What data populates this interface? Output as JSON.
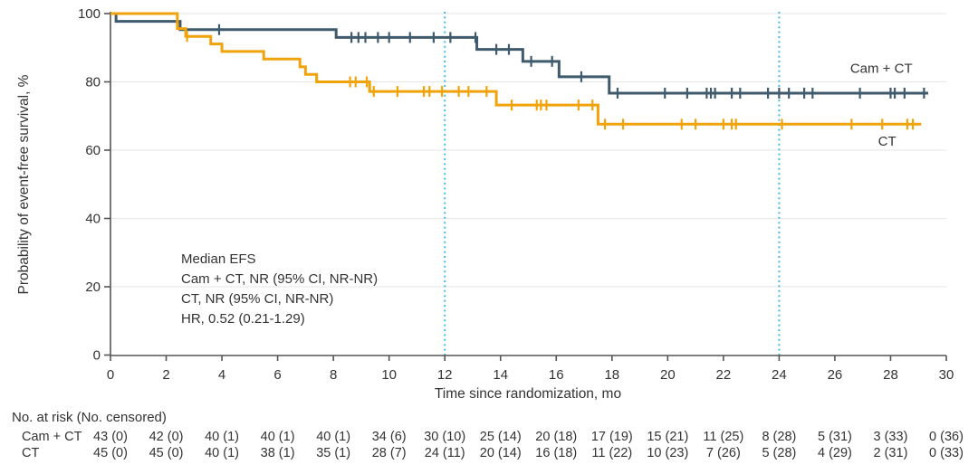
{
  "chart_data": {
    "type": "line",
    "subtype": "kaplan-meier-step",
    "title": "",
    "xlabel": "Time since randomization, mo",
    "ylabel": "Probability of event-free survival, %",
    "xlim": [
      0,
      30
    ],
    "ylim": [
      0,
      100
    ],
    "xticks": [
      0,
      2,
      4,
      6,
      8,
      10,
      12,
      14,
      16,
      18,
      20,
      22,
      24,
      26,
      28,
      30
    ],
    "yticks": [
      0,
      20,
      40,
      60,
      80,
      100
    ],
    "grid": "horizontal",
    "reference_lines_x": [
      12,
      24
    ],
    "colors": {
      "cam_ct": "#3F5A6D",
      "ct": "#F0A30A",
      "reference_line": "#45BCE8",
      "grid": "#E9E9E9",
      "axis": "#555555",
      "text": "#333333"
    },
    "series": [
      {
        "name": "Cam + CT",
        "color": "#3F5A6D",
        "steps": [
          [
            0,
            100
          ],
          [
            0.2,
            97.7
          ],
          [
            2.5,
            95.3
          ],
          [
            8.1,
            93.0
          ],
          [
            13.15,
            89.5
          ],
          [
            14.8,
            86.0
          ],
          [
            16.1,
            81.5
          ],
          [
            17.9,
            76.7
          ]
        ],
        "end_x": 29.35,
        "censors": [
          [
            3.9,
            95.3
          ],
          [
            8.65,
            93.0
          ],
          [
            8.9,
            93.0
          ],
          [
            9.15,
            93.0
          ],
          [
            9.6,
            93.0
          ],
          [
            10.0,
            93.0
          ],
          [
            10.75,
            93.0
          ],
          [
            11.6,
            93.0
          ],
          [
            12.2,
            93.0
          ],
          [
            13.1,
            93.0
          ],
          [
            13.85,
            89.5
          ],
          [
            14.3,
            89.5
          ],
          [
            15.1,
            86.0
          ],
          [
            15.85,
            86.0
          ],
          [
            16.9,
            81.5
          ],
          [
            18.2,
            76.7
          ],
          [
            19.9,
            76.7
          ],
          [
            20.7,
            76.7
          ],
          [
            21.4,
            76.7
          ],
          [
            21.55,
            76.7
          ],
          [
            21.7,
            76.7
          ],
          [
            22.3,
            76.7
          ],
          [
            22.6,
            76.7
          ],
          [
            23.6,
            76.7
          ],
          [
            24.0,
            76.7
          ],
          [
            24.35,
            76.7
          ],
          [
            24.9,
            76.7
          ],
          [
            25.2,
            76.7
          ],
          [
            26.9,
            76.7
          ],
          [
            28.0,
            76.7
          ],
          [
            28.15,
            76.7
          ],
          [
            28.5,
            76.7
          ],
          [
            29.2,
            76.7
          ]
        ],
        "label_pos": [
          26.55,
          82.7
        ]
      },
      {
        "name": "CT",
        "color": "#F0A30A",
        "steps": [
          [
            0,
            100
          ],
          [
            2.4,
            95.6
          ],
          [
            2.7,
            93.3
          ],
          [
            3.6,
            91.1
          ],
          [
            4.0,
            88.9
          ],
          [
            5.5,
            86.7
          ],
          [
            6.8,
            84.4
          ],
          [
            7.0,
            82.2
          ],
          [
            7.4,
            80.0
          ],
          [
            9.3,
            77.2
          ],
          [
            13.85,
            73.2
          ],
          [
            17.5,
            67.6
          ]
        ],
        "end_x": 29.1,
        "censors": [
          [
            2.75,
            93.3
          ],
          [
            8.6,
            80.0
          ],
          [
            8.8,
            80.0
          ],
          [
            9.2,
            80.0
          ],
          [
            9.45,
            77.2
          ],
          [
            10.3,
            77.2
          ],
          [
            11.25,
            77.2
          ],
          [
            11.45,
            77.2
          ],
          [
            11.9,
            77.2
          ],
          [
            12.5,
            77.2
          ],
          [
            12.85,
            77.2
          ],
          [
            13.5,
            77.2
          ],
          [
            14.4,
            73.2
          ],
          [
            15.3,
            73.2
          ],
          [
            15.45,
            73.2
          ],
          [
            15.65,
            73.2
          ],
          [
            16.8,
            73.2
          ],
          [
            17.3,
            73.2
          ],
          [
            17.75,
            67.6
          ],
          [
            18.4,
            67.6
          ],
          [
            20.5,
            67.6
          ],
          [
            21.0,
            67.6
          ],
          [
            22.0,
            67.6
          ],
          [
            22.3,
            67.6
          ],
          [
            22.45,
            67.6
          ],
          [
            24.1,
            67.6
          ],
          [
            26.6,
            67.6
          ],
          [
            27.7,
            67.6
          ],
          [
            28.6,
            67.6
          ],
          [
            28.8,
            67.6
          ]
        ],
        "label_pos": [
          27.55,
          61.3
        ]
      }
    ],
    "annotation": {
      "lines": [
        "Median EFS",
        "Cam + CT, NR (95% CI, NR-NR)",
        "CT, NR (95% CI, NR-NR)",
        "HR, 0.52 (0.21-1.29)"
      ]
    }
  },
  "risk_table": {
    "title": "No. at risk (No. censored)",
    "months": [
      0,
      2,
      4,
      6,
      8,
      10,
      12,
      14,
      16,
      18,
      20,
      22,
      24,
      26,
      28,
      30
    ],
    "rows": [
      {
        "label": "Cam + CT",
        "values": [
          "43 (0)",
          "42 (0)",
          "40 (1)",
          "40 (1)",
          "40 (1)",
          "34 (6)",
          "30 (10)",
          "25 (14)",
          "20 (18)",
          "17 (19)",
          "15 (21)",
          "11 (25)",
          "8 (28)",
          "5 (31)",
          "3 (33)",
          "0 (36)"
        ]
      },
      {
        "label": "CT",
        "values": [
          "45 (0)",
          "45 (0)",
          "40 (1)",
          "38 (1)",
          "35 (1)",
          "28 (7)",
          "24 (11)",
          "20 (14)",
          "16 (18)",
          "11 (22)",
          "10 (23)",
          "7 (26)",
          "5 (28)",
          "4 (29)",
          "2 (31)",
          "0 (33)"
        ]
      }
    ]
  }
}
